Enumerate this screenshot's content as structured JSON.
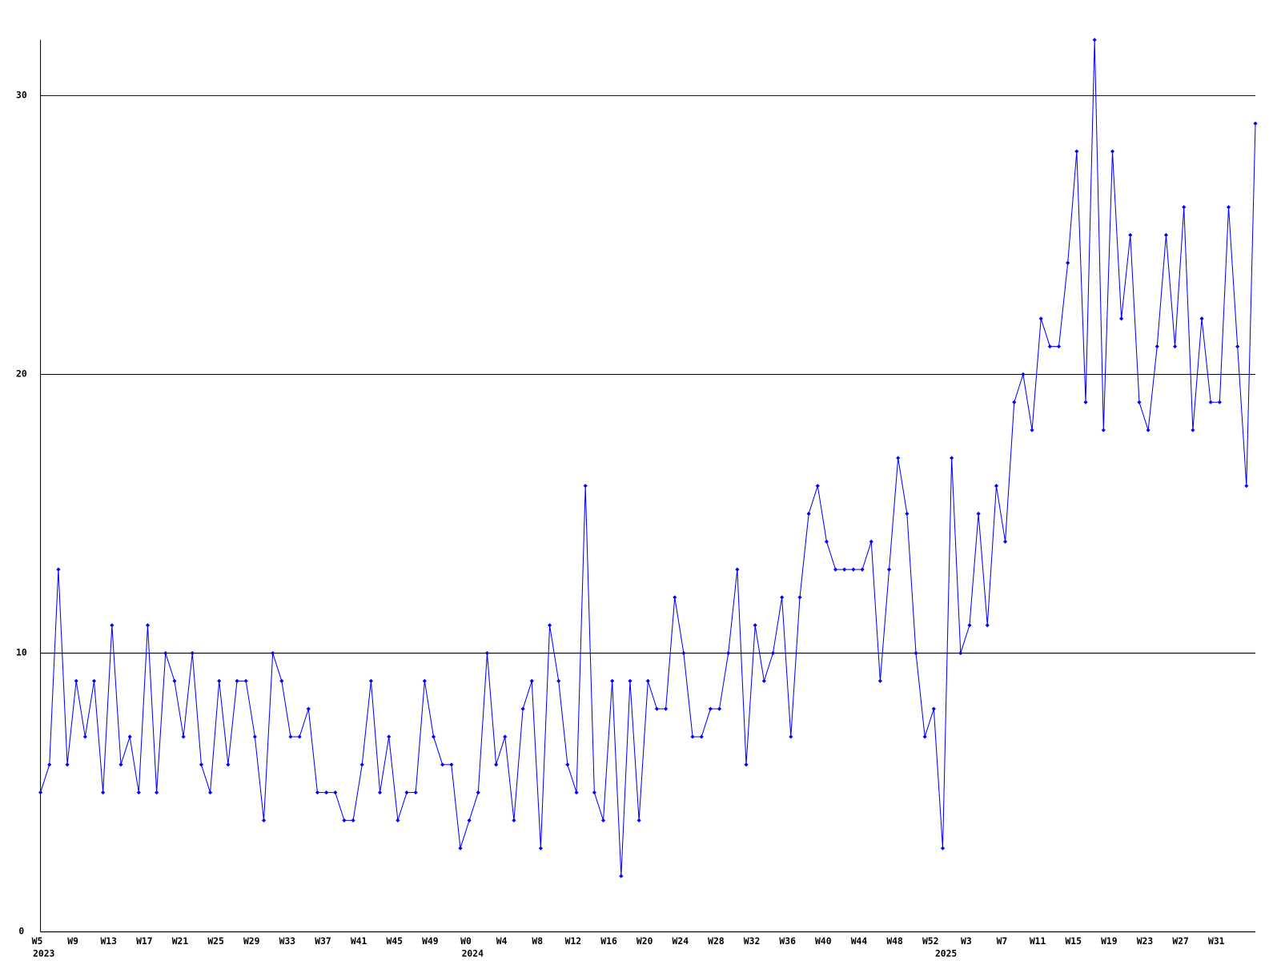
{
  "chart_data": {
    "type": "line",
    "categories": [
      "W5",
      null,
      null,
      null,
      "W9",
      null,
      null,
      null,
      "W13",
      null,
      null,
      null,
      "W17",
      null,
      null,
      null,
      "W21",
      null,
      null,
      null,
      "W25",
      null,
      null,
      null,
      "W29",
      null,
      null,
      null,
      "W33",
      null,
      null,
      null,
      "W37",
      null,
      null,
      null,
      "W41",
      null,
      null,
      null,
      "W45",
      null,
      null,
      null,
      "W49",
      null,
      null,
      null,
      "W0",
      null,
      null,
      null,
      "W4",
      null,
      null,
      null,
      "W8",
      null,
      null,
      null,
      "W12",
      null,
      null,
      null,
      "W16",
      null,
      null,
      null,
      "W20",
      null,
      null,
      null,
      "W24",
      null,
      null,
      null,
      "W28",
      null,
      null,
      null,
      "W32",
      null,
      null,
      null,
      "W36",
      null,
      null,
      null,
      "W40",
      null,
      null,
      null,
      "W44",
      null,
      null,
      null,
      "W48",
      null,
      null,
      null,
      "W52",
      null,
      null,
      null,
      "W3",
      null,
      null,
      null,
      "W7",
      null,
      null,
      null,
      "W11",
      null,
      null,
      null,
      "W15",
      null,
      null,
      null,
      "W19",
      null,
      null,
      null,
      "W23",
      null,
      null,
      null,
      "W27",
      null,
      null,
      null,
      "W31",
      null,
      null,
      null,
      null
    ],
    "year_labels": [
      "2023",
      null,
      null,
      null,
      null,
      null,
      null,
      null,
      null,
      null,
      null,
      null,
      null,
      null,
      null,
      null,
      null,
      null,
      null,
      null,
      null,
      null,
      null,
      null,
      null,
      null,
      null,
      null,
      null,
      null,
      null,
      null,
      null,
      null,
      null,
      null,
      null,
      null,
      null,
      null,
      null,
      null,
      null,
      null,
      null,
      null,
      null,
      null,
      "2024",
      null,
      null,
      null,
      null,
      null,
      null,
      null,
      null,
      null,
      null,
      null,
      null,
      null,
      null,
      null,
      null,
      null,
      null,
      null,
      null,
      null,
      null,
      null,
      null,
      null,
      null,
      null,
      null,
      null,
      null,
      null,
      null,
      null,
      null,
      null,
      null,
      null,
      null,
      null,
      null,
      null,
      null,
      null,
      null,
      null,
      null,
      null,
      null,
      null,
      null,
      null,
      null,
      "2025",
      null,
      null,
      null,
      null,
      null,
      null,
      null,
      null,
      null,
      null,
      null,
      null,
      null,
      null,
      null,
      null,
      null,
      null,
      null,
      null,
      null,
      null,
      null,
      null,
      null,
      null,
      null,
      null,
      null,
      null,
      null,
      null,
      null,
      null,
      null
    ],
    "series": [
      {
        "color": "#0000ff",
        "values": [
          5,
          6,
          13,
          6,
          9,
          7,
          9,
          5,
          11,
          6,
          7,
          5,
          11,
          5,
          10,
          9,
          7,
          10,
          6,
          5,
          9,
          6,
          9,
          9,
          7,
          4,
          10,
          9,
          7,
          7,
          8,
          5,
          5,
          5,
          4,
          4,
          6,
          9,
          5,
          7,
          4,
          5,
          5,
          9,
          7,
          6,
          6,
          3,
          4,
          5,
          10,
          6,
          7,
          4,
          8,
          9,
          3,
          11,
          9,
          6,
          5,
          16,
          5,
          4,
          9,
          2,
          9,
          4,
          9,
          8,
          8,
          12,
          10,
          7,
          7,
          8,
          8,
          10,
          13,
          6,
          11,
          9,
          10,
          12,
          7,
          12,
          15,
          16,
          14,
          13,
          13,
          13,
          13,
          14,
          9,
          13,
          17,
          15,
          10,
          7,
          8,
          3,
          17,
          10,
          11,
          15,
          11,
          16,
          14,
          19,
          20,
          18,
          22,
          21,
          21,
          24,
          28,
          19,
          32,
          18,
          28,
          22,
          25,
          19,
          18,
          21,
          25,
          21,
          26,
          18,
          22,
          19,
          19,
          26,
          21,
          16,
          29
        ]
      }
    ],
    "ylim": [
      0,
      32
    ],
    "yticks": [
      0,
      10,
      20,
      30
    ],
    "grid": true
  }
}
